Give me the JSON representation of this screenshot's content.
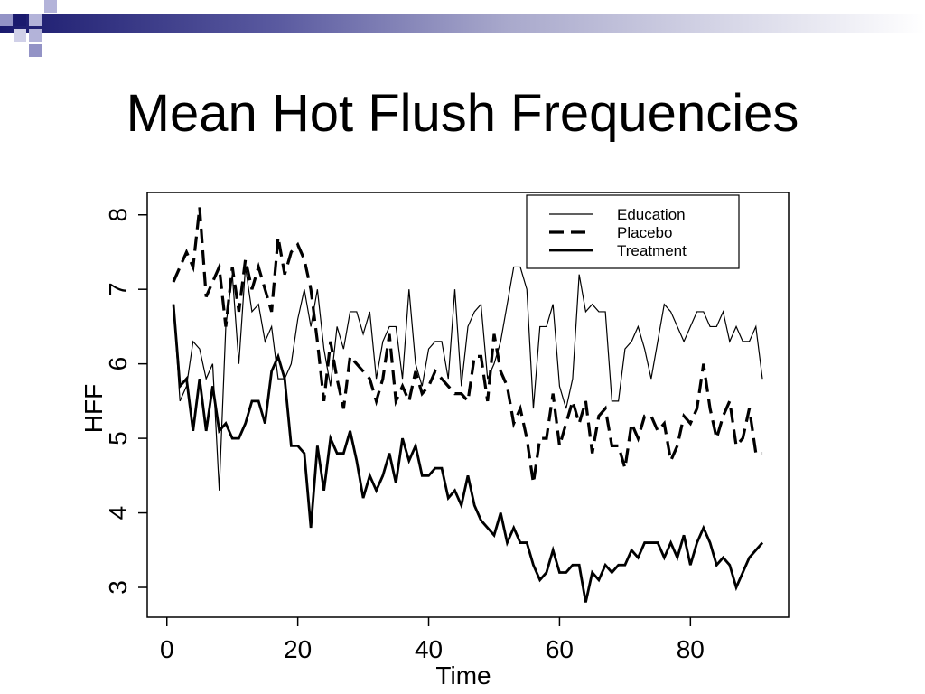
{
  "slide": {
    "title": "Mean Hot Flush Frequencies"
  },
  "chart_data": {
    "type": "line",
    "title": "",
    "xlabel": "Time",
    "ylabel": "HFF",
    "xlim": [
      -3,
      95
    ],
    "ylim": [
      2.6,
      8.3
    ],
    "xticks": [
      0,
      20,
      40,
      60,
      80
    ],
    "yticks": [
      3,
      4,
      5,
      6,
      7,
      8
    ],
    "grid": false,
    "legend_position": "top-right",
    "series": [
      {
        "name": "Education",
        "style": "thin",
        "x": [
          1,
          2,
          3,
          4,
          5,
          6,
          7,
          8,
          9,
          10,
          11,
          12,
          13,
          14,
          15,
          16,
          17,
          18,
          19,
          20,
          21,
          22,
          23,
          24,
          25,
          26,
          27,
          28,
          29,
          30,
          31,
          32,
          33,
          34,
          35,
          36,
          37,
          38,
          39,
          40,
          41,
          42,
          43,
          44,
          45,
          46,
          47,
          48,
          49,
          50,
          51,
          52,
          53,
          54,
          55,
          56,
          57,
          58,
          59,
          60,
          61,
          62,
          63,
          64,
          65,
          66,
          67,
          68,
          69,
          70,
          71,
          72,
          73,
          74,
          75,
          76,
          77,
          78,
          79,
          80,
          81,
          82,
          83,
          84,
          85,
          86,
          87,
          88,
          89,
          90,
          91
        ],
        "values": [
          6.8,
          5.5,
          5.7,
          6.3,
          6.2,
          5.8,
          6.0,
          4.3,
          6.5,
          7.2,
          6.0,
          7.3,
          6.7,
          6.8,
          6.3,
          6.5,
          5.8,
          5.8,
          6.0,
          6.6,
          7.0,
          6.5,
          7.0,
          6.2,
          5.7,
          6.5,
          6.2,
          6.7,
          6.7,
          6.4,
          6.7,
          5.8,
          6.3,
          6.5,
          6.5,
          5.8,
          7.0,
          6.0,
          5.7,
          6.2,
          6.3,
          6.3,
          5.8,
          7.0,
          5.7,
          6.5,
          6.7,
          6.8,
          5.8,
          6.0,
          6.3,
          6.8,
          7.3,
          7.3,
          7.0,
          5.4,
          6.5,
          6.5,
          6.8,
          5.7,
          5.4,
          5.8,
          7.2,
          6.7,
          6.8,
          6.7,
          6.7,
          5.5,
          5.5,
          6.2,
          6.3,
          6.5,
          6.2,
          5.8,
          6.3,
          6.8,
          6.7,
          6.5,
          6.3,
          6.5,
          6.7,
          6.7,
          6.5,
          6.5,
          6.7,
          6.3,
          6.5,
          6.3,
          6.3,
          6.5,
          5.8
        ]
      },
      {
        "name": "Placebo",
        "style": "dashed",
        "x": [
          1,
          2,
          3,
          4,
          5,
          6,
          7,
          8,
          9,
          10,
          11,
          12,
          13,
          14,
          15,
          16,
          17,
          18,
          19,
          20,
          21,
          22,
          23,
          24,
          25,
          26,
          27,
          28,
          29,
          30,
          31,
          32,
          33,
          34,
          35,
          36,
          37,
          38,
          39,
          40,
          41,
          42,
          43,
          44,
          45,
          46,
          47,
          48,
          49,
          50,
          51,
          52,
          53,
          54,
          55,
          56,
          57,
          58,
          59,
          60,
          61,
          62,
          63,
          64,
          65,
          66,
          67,
          68,
          69,
          70,
          71,
          72,
          73,
          74,
          75,
          76,
          77,
          78,
          79,
          80,
          81,
          82,
          83,
          84,
          85,
          86,
          87,
          88,
          89,
          90,
          91
        ],
        "values": [
          7.1,
          7.3,
          7.5,
          7.3,
          8.1,
          6.9,
          7.1,
          7.3,
          6.5,
          7.3,
          6.7,
          7.4,
          7.0,
          7.3,
          7.0,
          6.7,
          7.7,
          7.2,
          7.5,
          7.6,
          7.4,
          7.0,
          6.3,
          5.5,
          6.3,
          5.8,
          5.4,
          6.1,
          6.0,
          5.9,
          5.8,
          5.5,
          5.8,
          6.4,
          5.5,
          5.7,
          5.5,
          5.9,
          5.6,
          5.7,
          5.9,
          5.8,
          5.7,
          5.6,
          5.6,
          5.5,
          6.1,
          6.1,
          5.5,
          6.4,
          5.9,
          5.7,
          5.2,
          5.4,
          5.0,
          4.4,
          5.0,
          5.0,
          5.6,
          4.9,
          5.2,
          5.5,
          5.2,
          5.5,
          4.8,
          5.3,
          5.4,
          4.9,
          4.9,
          4.6,
          5.2,
          5.0,
          5.3,
          5.3,
          5.1,
          5.2,
          4.7,
          4.9,
          5.3,
          5.2,
          5.4,
          6.0,
          5.4,
          5.0,
          5.3,
          5.5,
          4.9,
          5.0,
          5.4,
          4.8,
          4.8
        ]
      },
      {
        "name": "Treatment",
        "style": "thick",
        "x": [
          1,
          2,
          3,
          4,
          5,
          6,
          7,
          8,
          9,
          10,
          11,
          12,
          13,
          14,
          15,
          16,
          17,
          18,
          19,
          20,
          21,
          22,
          23,
          24,
          25,
          26,
          27,
          28,
          29,
          30,
          31,
          32,
          33,
          34,
          35,
          36,
          37,
          38,
          39,
          40,
          41,
          42,
          43,
          44,
          45,
          46,
          47,
          48,
          49,
          50,
          51,
          52,
          53,
          54,
          55,
          56,
          57,
          58,
          59,
          60,
          61,
          62,
          63,
          64,
          65,
          66,
          67,
          68,
          69,
          70,
          71,
          72,
          73,
          74,
          75,
          76,
          77,
          78,
          79,
          80,
          81,
          82,
          83,
          84,
          85,
          86,
          87,
          88,
          89,
          90,
          91
        ],
        "values": [
          6.8,
          5.7,
          5.8,
          5.1,
          5.8,
          5.1,
          5.7,
          5.1,
          5.2,
          5.0,
          5.0,
          5.2,
          5.5,
          5.5,
          5.2,
          5.9,
          6.1,
          5.8,
          4.9,
          4.9,
          4.8,
          3.8,
          4.9,
          4.3,
          5.0,
          4.8,
          4.8,
          5.1,
          4.7,
          4.2,
          4.5,
          4.3,
          4.5,
          4.8,
          4.4,
          5.0,
          4.7,
          4.9,
          4.5,
          4.5,
          4.6,
          4.6,
          4.2,
          4.3,
          4.1,
          4.5,
          4.1,
          3.9,
          3.8,
          3.7,
          4.0,
          3.6,
          3.8,
          3.6,
          3.6,
          3.3,
          3.1,
          3.2,
          3.5,
          3.2,
          3.2,
          3.3,
          3.3,
          2.8,
          3.2,
          3.1,
          3.3,
          3.2,
          3.3,
          3.3,
          3.5,
          3.4,
          3.6,
          3.6,
          3.6,
          3.4,
          3.6,
          3.4,
          3.7,
          3.3,
          3.6,
          3.8,
          3.6,
          3.3,
          3.4,
          3.3,
          3.0,
          3.2,
          3.4,
          3.5,
          3.6
        ]
      }
    ]
  }
}
